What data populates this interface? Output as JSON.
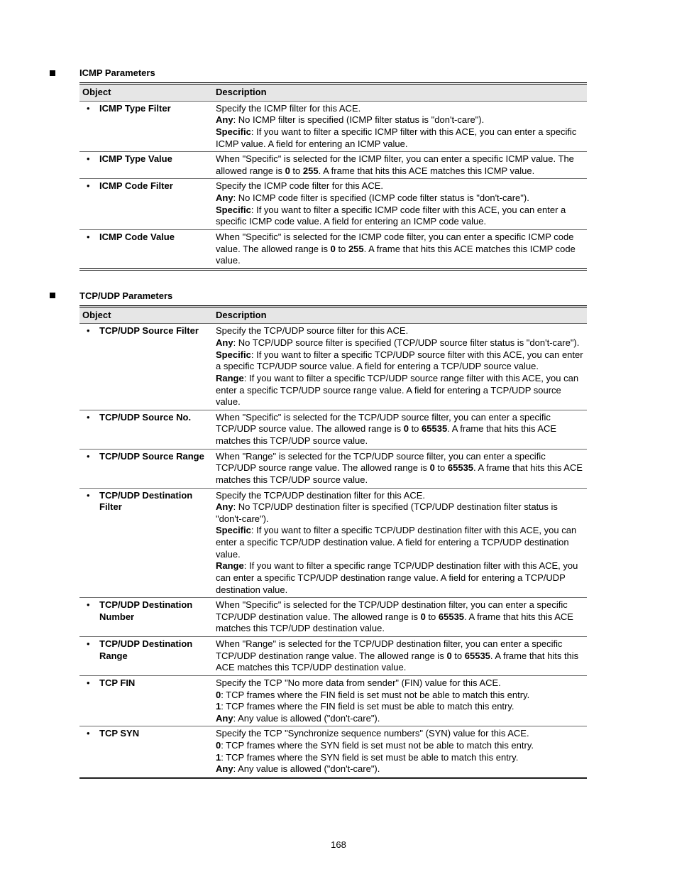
{
  "page_number": "168",
  "sections": [
    {
      "title": "ICMP Parameters",
      "header": {
        "col1": "Object",
        "col2": "Description"
      },
      "rows": [
        {
          "label": "ICMP Type Filter",
          "desc_html": "Specify the ICMP filter for this ACE.<br><span class=\"bold\">Any</span>: No ICMP filter is specified (ICMP filter status is \"don't-care\").<br><span class=\"bold\">Specific</span>: If you want to filter a specific ICMP filter with this ACE, you can enter a specific ICMP value. A field for entering an ICMP value."
        },
        {
          "label": "ICMP Type Value",
          "desc_html": "When \"Specific\" is selected for the ICMP filter, you can enter a specific ICMP value. The allowed range is <span class=\"bold\">0</span> to <span class=\"bold\">255</span>. A frame that hits this ACE matches this ICMP value."
        },
        {
          "label": "ICMP Code Filter",
          "desc_html": "Specify the ICMP code filter for this ACE.<br><span class=\"bold\">Any</span>: No ICMP code filter is specified (ICMP code filter status is \"don't-care\").<br><span class=\"bold\">Specific</span>: If you want to filter a specific ICMP code filter with this ACE, you can enter a specific ICMP code value. A field for entering an ICMP code value."
        },
        {
          "label": "ICMP Code Value",
          "desc_html": "When \"Specific\" is selected for the ICMP code filter, you can enter a specific ICMP code value. The allowed range is <span class=\"bold\">0</span> to <span class=\"bold\">255</span>. A frame that hits this ACE matches this ICMP code value."
        }
      ]
    },
    {
      "title": "TCP/UDP Parameters",
      "header": {
        "col1": "Object",
        "col2": "Description"
      },
      "rows": [
        {
          "label": "TCP/UDP Source Filter",
          "desc_html": "Specify the TCP/UDP source filter for this ACE.<br><span class=\"bold\">Any</span>: No TCP/UDP source filter is specified (TCP/UDP source filter status is \"don't-care\").<br><span class=\"bold\">Specific</span>: If you want to filter a specific TCP/UDP source filter with this ACE, you can enter a specific TCP/UDP source value. A field for entering a TCP/UDP source value.<br><span class=\"bold\">Range</span>: If you want to filter a specific TCP/UDP source range filter with this ACE, you can enter a specific TCP/UDP source range value. A field for entering a TCP/UDP source value."
        },
        {
          "label": "TCP/UDP Source No.",
          "desc_html": "When \"Specific\" is selected for the TCP/UDP source filter, you can enter a specific TCP/UDP source value. The allowed range is <span class=\"bold\">0</span> to <span class=\"bold\">65535</span>. A frame that hits this ACE matches this TCP/UDP source value."
        },
        {
          "label": "TCP/UDP Source Range",
          "desc_html": "When \"Range\" is selected for the TCP/UDP source filter, you can enter a specific TCP/UDP source range value. The allowed range is <span class=\"bold\">0</span> to <span class=\"bold\">65535</span>. A frame that hits this ACE matches this TCP/UDP source value."
        },
        {
          "label": "TCP/UDP Destination Filter",
          "desc_html": "Specify the TCP/UDP destination filter for this ACE.<br><span class=\"bold\">Any</span>: No TCP/UDP destination filter is specified (TCP/UDP destination filter status is \"don't-care\").<br><span class=\"bold\">Specific</span>: If you want to filter a specific TCP/UDP destination filter with this ACE, you can enter a specific TCP/UDP destination value. A field for entering a TCP/UDP destination value.<br><span class=\"bold\">Range</span>: If you want to filter a specific range TCP/UDP destination filter with this ACE, you can enter a specific TCP/UDP destination range value. A field for entering a TCP/UDP destination value."
        },
        {
          "label": "TCP/UDP Destination Number",
          "desc_html": "When \"Specific\" is selected for the TCP/UDP destination filter, you can enter a specific TCP/UDP destination value. The allowed range is <span class=\"bold\">0</span> to <span class=\"bold\">65535</span>. A frame that hits this ACE matches this TCP/UDP destination value."
        },
        {
          "label": "TCP/UDP Destination Range",
          "desc_html": "When \"Range\" is selected for the TCP/UDP destination filter, you can enter a specific TCP/UDP destination range value. The allowed range is <span class=\"bold\">0</span> to <span class=\"bold\">65535</span>. A frame that hits this ACE matches this TCP/UDP destination value."
        },
        {
          "label": "TCP FIN",
          "desc_html": "Specify the TCP \"No more data from sender\" (FIN) value for this ACE.<br><span class=\"bold\">0</span>: TCP frames where the FIN field is set must not be able to match this entry.<br><span class=\"bold\">1</span>: TCP frames where the FIN field is set must be able to match this entry.<br><span class=\"bold\">Any</span>: Any value is allowed (\"don't-care\")."
        },
        {
          "label": "TCP SYN",
          "desc_html": "Specify the TCP \"Synchronize sequence numbers\" (SYN) value for this ACE.<br><span class=\"bold\">0</span>: TCP frames where the SYN field is set must not be able to match this entry.<br><span class=\"bold\">1</span>: TCP frames where the SYN field is set must be able to match this entry.<br><span class=\"bold\">Any</span>: Any value is allowed (\"don't-care\")."
        }
      ]
    }
  ]
}
